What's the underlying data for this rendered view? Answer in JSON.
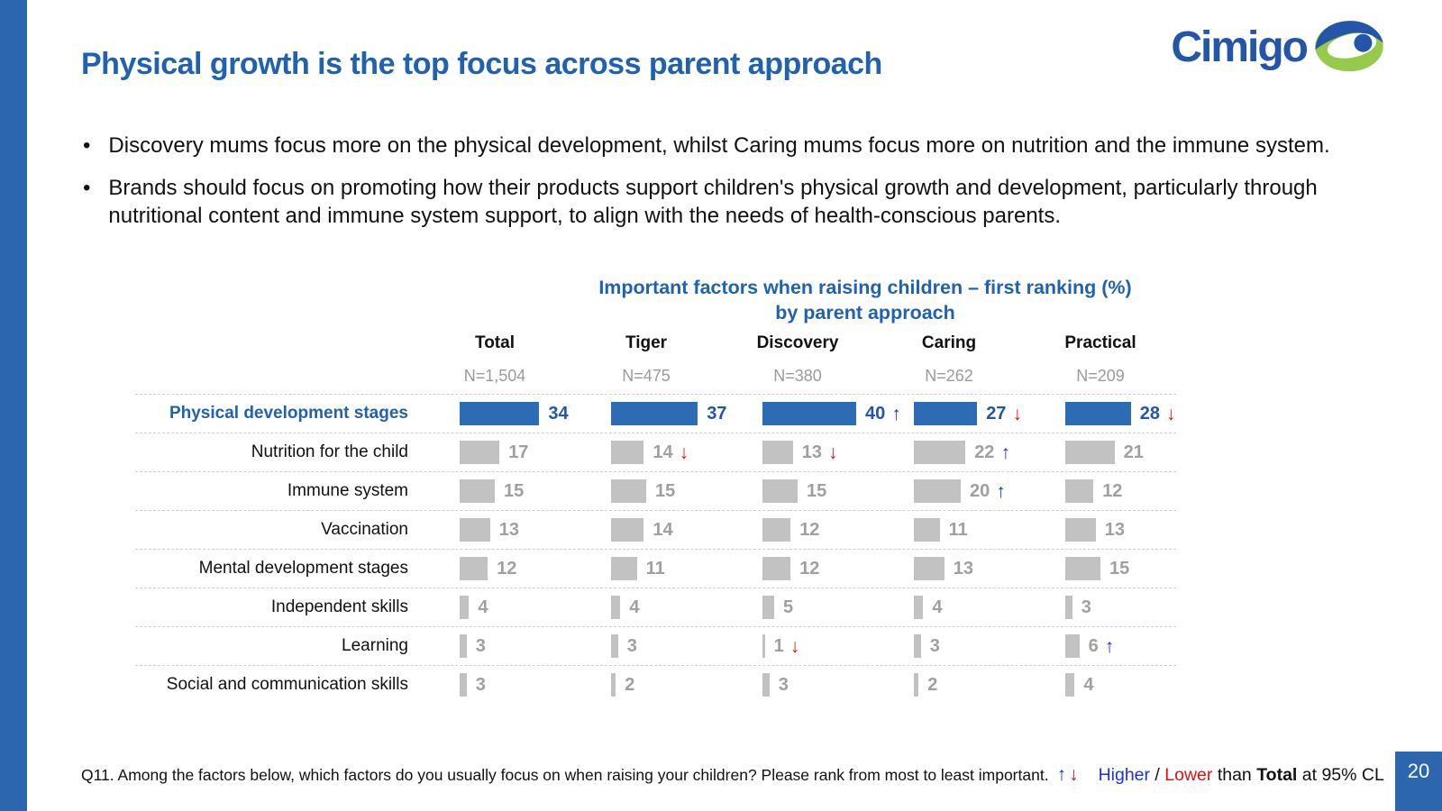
{
  "slide": {
    "title": "Physical growth is the top focus across parent approach",
    "bullets": [
      "Discovery mums focus more on the physical development, whilst Caring mums focus more on nutrition and the immune system.",
      "Brands should focus on promoting how their products support children's physical growth and development, particularly through nutritional content and immune system support, to align with the needs of health-conscious parents."
    ],
    "page_number": "20"
  },
  "logo": {
    "text": "Cimigo"
  },
  "chart_data": {
    "type": "bar",
    "title_line1": "Important factors when raising children – first ranking (%)",
    "title_line2": "by parent approach",
    "orientation": "horizontal",
    "value_unit": "percent",
    "highlight_row": 0,
    "categories": [
      "Physical development stages",
      "Nutrition for the child",
      "Immune system",
      "Vaccination",
      "Mental development stages",
      "Independent skills",
      "Learning",
      "Social and communication skills"
    ],
    "series": [
      {
        "name": "Total",
        "n": "N=1,504",
        "values": [
          34,
          17,
          15,
          13,
          12,
          4,
          3,
          3
        ],
        "arrows": [
          null,
          null,
          null,
          null,
          null,
          null,
          null,
          null
        ]
      },
      {
        "name": "Tiger",
        "n": "N=475",
        "values": [
          37,
          14,
          15,
          14,
          11,
          4,
          3,
          2
        ],
        "arrows": [
          null,
          "down",
          null,
          null,
          null,
          null,
          null,
          null
        ]
      },
      {
        "name": "Discovery",
        "n": "N=380",
        "values": [
          40,
          13,
          15,
          12,
          12,
          5,
          1,
          3
        ],
        "arrows": [
          "up",
          "down",
          null,
          null,
          null,
          null,
          "down",
          null
        ]
      },
      {
        "name": "Caring",
        "n": "N=262",
        "values": [
          27,
          22,
          20,
          11,
          13,
          4,
          3,
          2
        ],
        "arrows": [
          "down",
          "up",
          "up",
          null,
          null,
          null,
          null,
          null
        ]
      },
      {
        "name": "Practical",
        "n": "N=209",
        "values": [
          28,
          21,
          12,
          13,
          15,
          3,
          6,
          4
        ],
        "arrows": [
          "down",
          null,
          null,
          null,
          null,
          null,
          "up",
          null
        ]
      }
    ],
    "colors": {
      "highlight_bar": "#2d6cb5",
      "bar": "#c2c2c2",
      "value_gray": "#a0a0a0",
      "accent_blue": "#2062ae",
      "arrow_up": "#1f2fe3",
      "arrow_down": "#e31212"
    }
  },
  "footer": {
    "question": "Q11. Among the factors below, which factors do you usually focus on when raising your children? Please rank from most to least important.",
    "legend_arrows": "↑↓",
    "legend": {
      "higher": "Higher",
      "sep": " / ",
      "lower": "Lower",
      "than": " than ",
      "total": "Total",
      "rest": " at 95% CL"
    }
  }
}
